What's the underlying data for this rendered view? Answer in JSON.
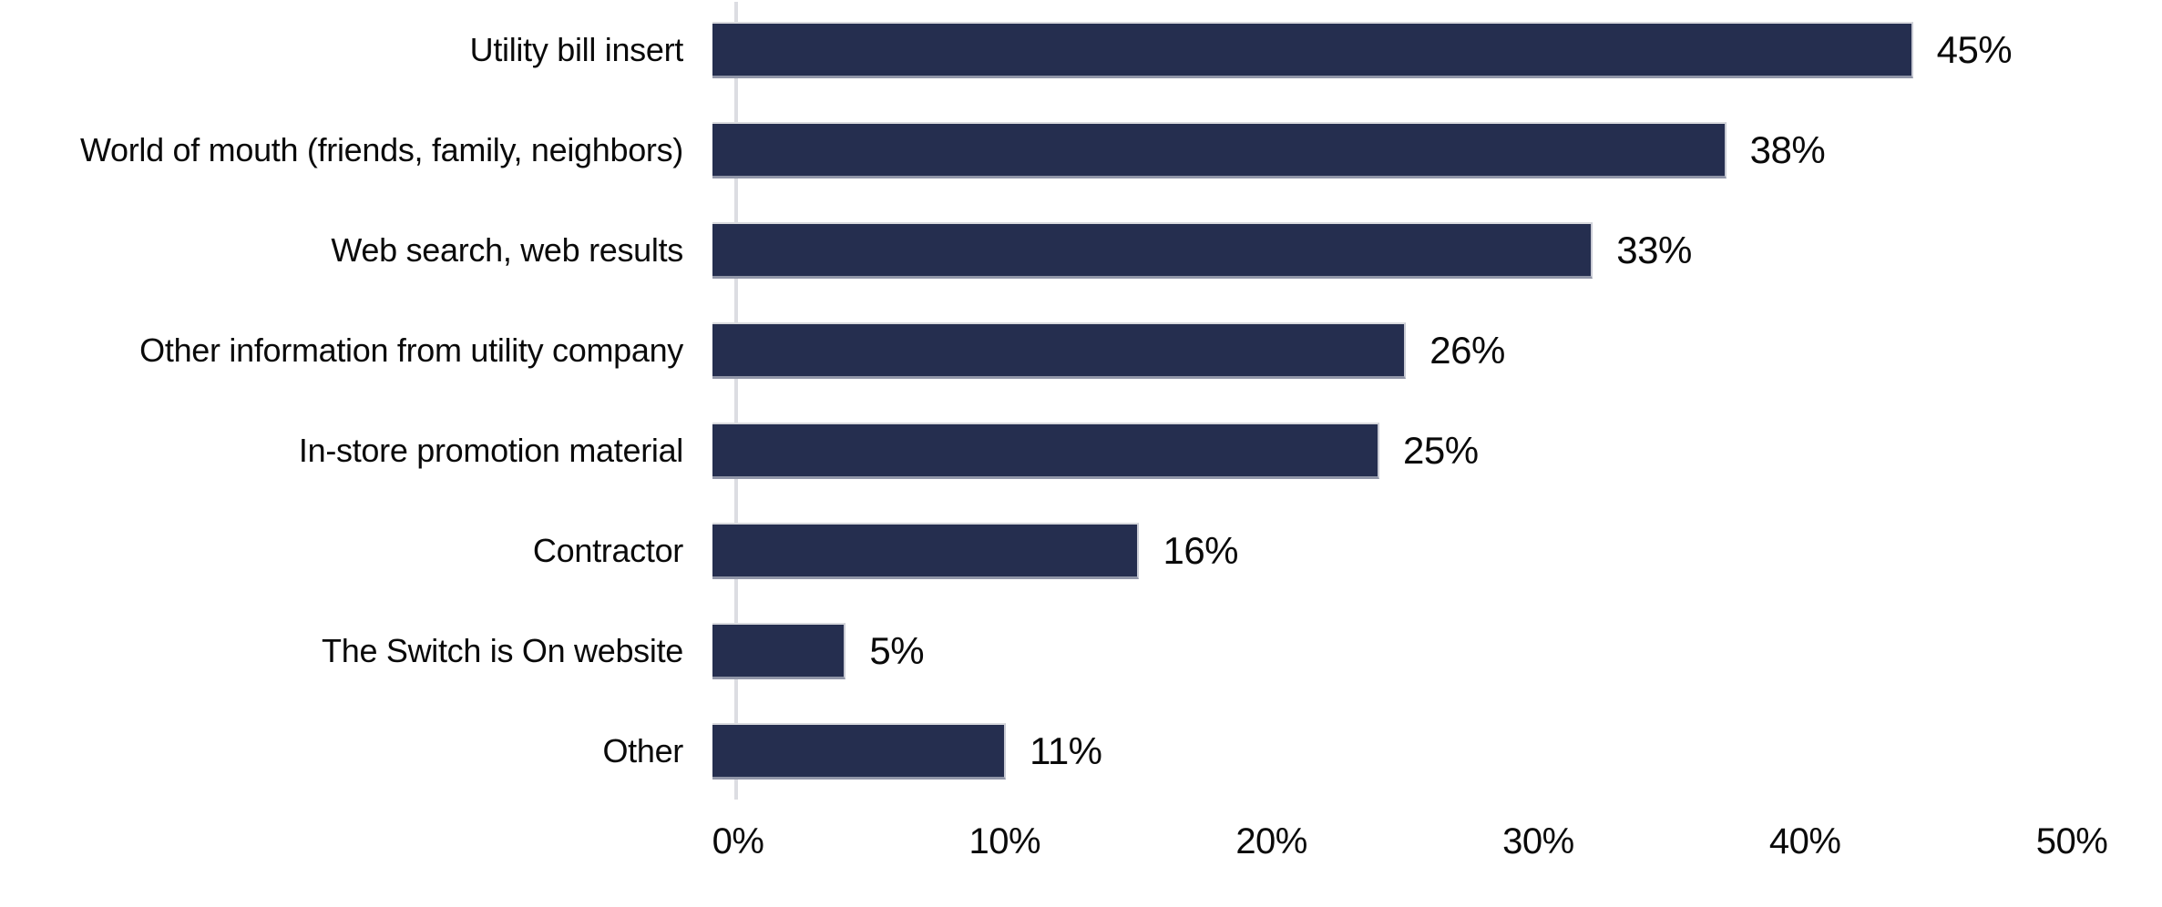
{
  "chart_data": {
    "type": "bar",
    "orientation": "horizontal",
    "title": "",
    "xlabel": "",
    "ylabel": "",
    "categories": [
      "Utility bill insert",
      "World of mouth (friends, family, neighbors)",
      "Web search, web results",
      "Other information from utility company",
      "In-store promotion material",
      "Contractor",
      "The Switch is On website",
      "Other"
    ],
    "values": [
      45,
      38,
      33,
      26,
      25,
      16,
      5,
      11
    ],
    "value_labels": [
      "45%",
      "38%",
      "33%",
      "26%",
      "25%",
      "16%",
      "5%",
      "11%"
    ],
    "x_ticks": [
      {
        "label": "0%",
        "value": 0
      },
      {
        "label": "10%",
        "value": 10
      },
      {
        "label": "20%",
        "value": 20
      },
      {
        "label": "30%",
        "value": 30
      },
      {
        "label": "40%",
        "value": 40
      },
      {
        "label": "50%",
        "value": 50
      }
    ],
    "xlim": [
      0,
      50
    ],
    "grid": false,
    "legend": false,
    "colors": {
      "bar_fill": "#252e4f",
      "axis_line": "#dcdde2",
      "text": "#0a0a0a",
      "background": "#ffffff"
    }
  }
}
